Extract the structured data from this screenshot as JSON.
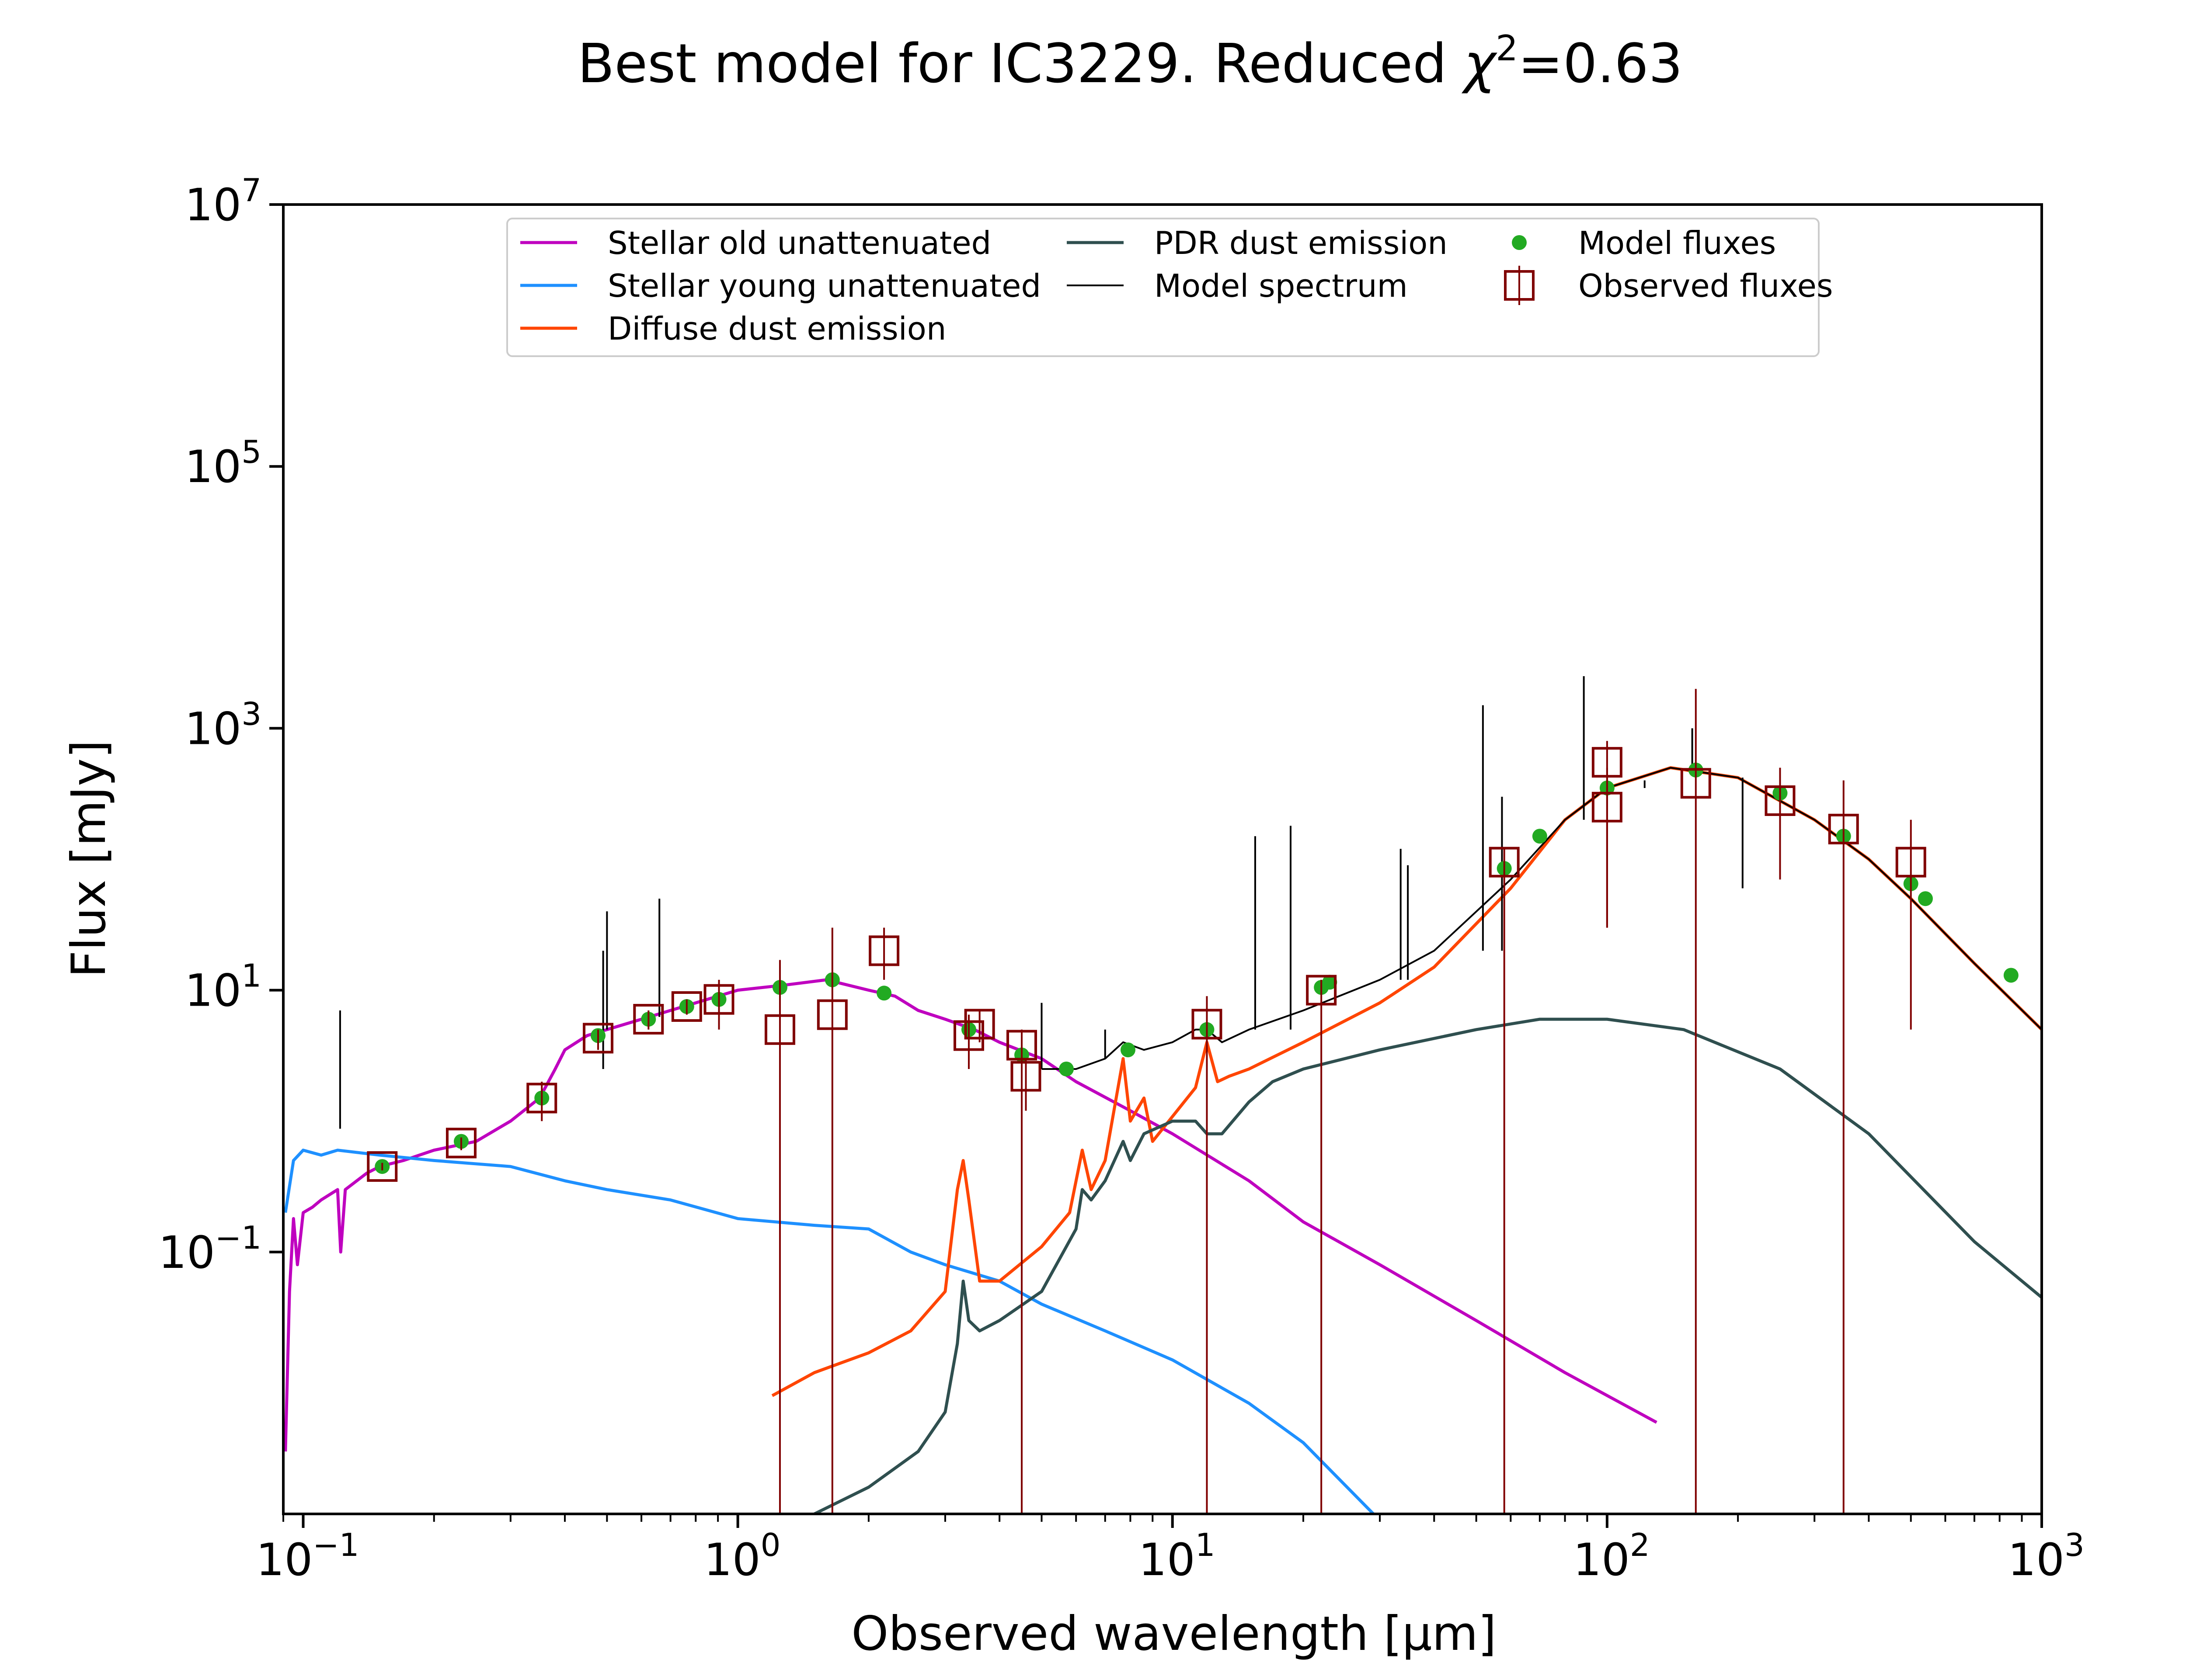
{
  "chart_data": {
    "type": "line",
    "title": "Best model for IC3229. Reduced χ²=0.63",
    "title_parts": {
      "prefix": "Best model for IC3229. Reduced ",
      "chi": "χ",
      "sup": "2",
      "suffix": "=0.63"
    },
    "xlabel": "Observed wavelength [μm]",
    "ylabel": "Flux [mJy]",
    "x_scale": "log",
    "y_scale": "log",
    "xlim": [
      0.09,
      1000
    ],
    "ylim": [
      0.001,
      10000000
    ],
    "grid": false,
    "legend_position": "top-center",
    "x_ticks": [
      {
        "value": 0.1,
        "base": "10",
        "exp": "−1"
      },
      {
        "value": 1,
        "base": "10",
        "exp": "0"
      },
      {
        "value": 10,
        "base": "10",
        "exp": "1"
      },
      {
        "value": 100,
        "base": "10",
        "exp": "2"
      },
      {
        "value": 1000,
        "base": "10",
        "exp": "3"
      }
    ],
    "y_ticks": [
      {
        "value": 0.1,
        "base": "10",
        "exp": "−1"
      },
      {
        "value": 10,
        "base": "10",
        "exp": "1"
      },
      {
        "value": 1000,
        "base": "10",
        "exp": "3"
      },
      {
        "value": 100000,
        "base": "10",
        "exp": "5"
      },
      {
        "value": 10000000,
        "base": "10",
        "exp": "7"
      }
    ],
    "series": [
      {
        "name": "Stellar old unattenuated",
        "color": "#bf00bf",
        "kind": "line",
        "points": [
          [
            0.091,
            0.003
          ],
          [
            0.093,
            0.05
          ],
          [
            0.095,
            0.18
          ],
          [
            0.097,
            0.08
          ],
          [
            0.1,
            0.2
          ],
          [
            0.105,
            0.22
          ],
          [
            0.11,
            0.25
          ],
          [
            0.12,
            0.3
          ],
          [
            0.122,
            0.1
          ],
          [
            0.125,
            0.3
          ],
          [
            0.14,
            0.4
          ],
          [
            0.15,
            0.45
          ],
          [
            0.17,
            0.5
          ],
          [
            0.2,
            0.6
          ],
          [
            0.25,
            0.7
          ],
          [
            0.3,
            1.0
          ],
          [
            0.35,
            1.5
          ],
          [
            0.38,
            2.5
          ],
          [
            0.4,
            3.5
          ],
          [
            0.45,
            4.5
          ],
          [
            0.5,
            5
          ],
          [
            0.6,
            6
          ],
          [
            0.7,
            7
          ],
          [
            0.8,
            8
          ],
          [
            1.0,
            10
          ],
          [
            1.3,
            11
          ],
          [
            1.6,
            12
          ],
          [
            2.0,
            10
          ],
          [
            2.3,
            9
          ],
          [
            2.6,
            7
          ],
          [
            3.0,
            6
          ],
          [
            3.5,
            5
          ],
          [
            4.0,
            4
          ],
          [
            5.0,
            3
          ],
          [
            6.0,
            2
          ],
          [
            8.0,
            1.2
          ],
          [
            10,
            0.8
          ],
          [
            15,
            0.35
          ],
          [
            20,
            0.17
          ],
          [
            30,
            0.08
          ],
          [
            50,
            0.03
          ],
          [
            80,
            0.012
          ],
          [
            130,
            0.005
          ]
        ]
      },
      {
        "name": "Stellar young unattenuated",
        "color": "#1e90ff",
        "kind": "line",
        "points": [
          [
            0.091,
            0.2
          ],
          [
            0.095,
            0.5
          ],
          [
            0.1,
            0.6
          ],
          [
            0.11,
            0.55
          ],
          [
            0.12,
            0.6
          ],
          [
            0.15,
            0.55
          ],
          [
            0.2,
            0.5
          ],
          [
            0.3,
            0.45
          ],
          [
            0.4,
            0.35
          ],
          [
            0.5,
            0.3
          ],
          [
            0.7,
            0.25
          ],
          [
            1.0,
            0.18
          ],
          [
            1.5,
            0.16
          ],
          [
            2.0,
            0.15
          ],
          [
            2.5,
            0.1
          ],
          [
            3.0,
            0.08
          ],
          [
            4.0,
            0.06
          ],
          [
            5.0,
            0.04
          ],
          [
            7.0,
            0.025
          ],
          [
            10,
            0.015
          ],
          [
            15,
            0.007
          ],
          [
            20,
            0.0035
          ],
          [
            29,
            0.001
          ]
        ]
      },
      {
        "name": "Diffuse dust emission",
        "color": "#ff4500",
        "kind": "line",
        "points": [
          [
            1.2,
            0.008
          ],
          [
            1.5,
            0.012
          ],
          [
            2.0,
            0.017
          ],
          [
            2.5,
            0.025
          ],
          [
            3.0,
            0.05
          ],
          [
            3.2,
            0.3
          ],
          [
            3.3,
            0.5
          ],
          [
            3.4,
            0.25
          ],
          [
            3.6,
            0.06
          ],
          [
            4.0,
            0.06
          ],
          [
            5.0,
            0.11
          ],
          [
            5.8,
            0.2
          ],
          [
            6.2,
            0.6
          ],
          [
            6.5,
            0.3
          ],
          [
            7.0,
            0.5
          ],
          [
            7.7,
            3.0
          ],
          [
            8.0,
            1.0
          ],
          [
            8.6,
            1.5
          ],
          [
            9.0,
            0.7
          ],
          [
            11.3,
            1.8
          ],
          [
            12,
            4
          ],
          [
            12.7,
            2
          ],
          [
            13.5,
            2.2
          ],
          [
            15,
            2.5
          ],
          [
            20,
            4
          ],
          [
            30,
            8
          ],
          [
            40,
            15
          ],
          [
            60,
            60
          ],
          [
            80,
            200
          ],
          [
            100,
            350
          ],
          [
            140,
            500
          ],
          [
            200,
            420
          ],
          [
            300,
            200
          ],
          [
            400,
            100
          ],
          [
            500,
            50
          ],
          [
            700,
            16
          ],
          [
            1000,
            5
          ]
        ]
      },
      {
        "name": "PDR dust emission",
        "color": "#2f4f4f",
        "kind": "line",
        "points": [
          [
            1.5,
            0.001
          ],
          [
            2.0,
            0.0016
          ],
          [
            2.6,
            0.003
          ],
          [
            3.0,
            0.006
          ],
          [
            3.2,
            0.02
          ],
          [
            3.3,
            0.06
          ],
          [
            3.4,
            0.03
          ],
          [
            3.6,
            0.025
          ],
          [
            4.0,
            0.03
          ],
          [
            5.0,
            0.05
          ],
          [
            6.0,
            0.15
          ],
          [
            6.2,
            0.3
          ],
          [
            6.5,
            0.25
          ],
          [
            7.0,
            0.35
          ],
          [
            7.7,
            0.7
          ],
          [
            8.0,
            0.5
          ],
          [
            8.6,
            0.8
          ],
          [
            10,
            1.0
          ],
          [
            11.3,
            1.0
          ],
          [
            12,
            0.8
          ],
          [
            13,
            0.8
          ],
          [
            15,
            1.4
          ],
          [
            17,
            2.0
          ],
          [
            20,
            2.5
          ],
          [
            30,
            3.5
          ],
          [
            50,
            5
          ],
          [
            70,
            6
          ],
          [
            100,
            6
          ],
          [
            150,
            5
          ],
          [
            250,
            2.5
          ],
          [
            400,
            0.8
          ],
          [
            700,
            0.12
          ],
          [
            1000,
            0.045
          ]
        ]
      },
      {
        "name": "Model spectrum",
        "color": "#000000",
        "kind": "line",
        "points": [
          [
            5.0,
            2.5
          ],
          [
            6.0,
            2.5
          ],
          [
            7.0,
            3.0
          ],
          [
            7.7,
            4.0
          ],
          [
            8.6,
            3.5
          ],
          [
            10,
            4
          ],
          [
            11.3,
            5
          ],
          [
            12,
            5
          ],
          [
            13,
            4
          ],
          [
            15,
            5
          ],
          [
            20,
            7
          ],
          [
            30,
            12
          ],
          [
            40,
            20
          ],
          [
            60,
            70
          ],
          [
            80,
            200
          ],
          [
            100,
            350
          ],
          [
            140,
            500
          ],
          [
            200,
            420
          ],
          [
            300,
            200
          ],
          [
            400,
            100
          ],
          [
            500,
            50
          ],
          [
            700,
            16
          ],
          [
            1000,
            5
          ]
        ],
        "lines": [
          [
            0.1216,
            7.0
          ],
          [
            0.49,
            20
          ],
          [
            0.5,
            40
          ],
          [
            0.66,
            50
          ],
          [
            5.0,
            8
          ],
          [
            7.0,
            5
          ],
          [
            15.5,
            150
          ],
          [
            18.7,
            180
          ],
          [
            33.5,
            120
          ],
          [
            34.8,
            90
          ],
          [
            51.8,
            1500
          ],
          [
            57.3,
            300
          ],
          [
            88.4,
            2500
          ],
          [
            122,
            400
          ],
          [
            157,
            1000
          ],
          [
            205,
            60
          ]
        ]
      },
      {
        "name": "Model fluxes",
        "color": "#22aa22",
        "kind": "scatter",
        "points": [
          [
            0.152,
            0.45
          ],
          [
            0.231,
            0.7
          ],
          [
            0.354,
            1.5
          ],
          [
            0.477,
            4.5
          ],
          [
            0.623,
            6
          ],
          [
            0.763,
            7.5
          ],
          [
            0.905,
            8.5
          ],
          [
            1.25,
            10.5
          ],
          [
            1.65,
            12
          ],
          [
            2.17,
            9.5
          ],
          [
            3.4,
            5
          ],
          [
            4.5,
            3.2
          ],
          [
            5.7,
            2.5
          ],
          [
            7.9,
            3.5
          ],
          [
            12,
            5
          ],
          [
            22,
            10.5
          ],
          [
            23,
            11.5
          ],
          [
            58,
            85
          ],
          [
            70,
            150
          ],
          [
            100,
            350
          ],
          [
            160,
            480
          ],
          [
            250,
            320
          ],
          [
            350,
            150
          ],
          [
            500,
            65
          ],
          [
            540,
            50
          ],
          [
            850,
            13
          ]
        ]
      },
      {
        "name": "Observed fluxes",
        "color": "#800000",
        "kind": "errorbar",
        "points": [
          [
            0.152,
            0.45,
            0.42,
            0.48
          ],
          [
            0.231,
            0.68,
            0.6,
            0.75
          ],
          [
            0.354,
            1.5,
            1.0,
            2.0
          ],
          [
            0.477,
            4.3,
            3.5,
            5.0
          ],
          [
            0.623,
            6.0,
            5.0,
            7.0
          ],
          [
            0.763,
            7.5,
            6.5,
            8.5
          ],
          [
            0.905,
            8.5,
            5.0,
            12
          ],
          [
            1.25,
            5.0,
            0.001,
            17
          ],
          [
            1.65,
            6.5,
            0.001,
            30
          ],
          [
            2.17,
            20,
            12,
            30
          ],
          [
            3.4,
            4.5,
            2.5,
            6.5
          ],
          [
            3.6,
            5.5,
            4.0,
            7.0
          ],
          [
            4.5,
            3.8,
            0.001,
            5.0
          ],
          [
            4.6,
            2.2,
            1.2,
            3.0
          ],
          [
            12,
            5.5,
            0.001,
            9
          ],
          [
            22,
            10,
            0.001,
            12
          ],
          [
            58,
            95,
            0.001,
            120
          ],
          [
            100,
            550,
            30,
            800
          ],
          [
            100,
            250,
            30,
            500
          ],
          [
            160,
            380,
            0.001,
            2000
          ],
          [
            250,
            280,
            70,
            500
          ],
          [
            350,
            170,
            0.001,
            400
          ],
          [
            500,
            95,
            5,
            200
          ]
        ]
      }
    ]
  }
}
